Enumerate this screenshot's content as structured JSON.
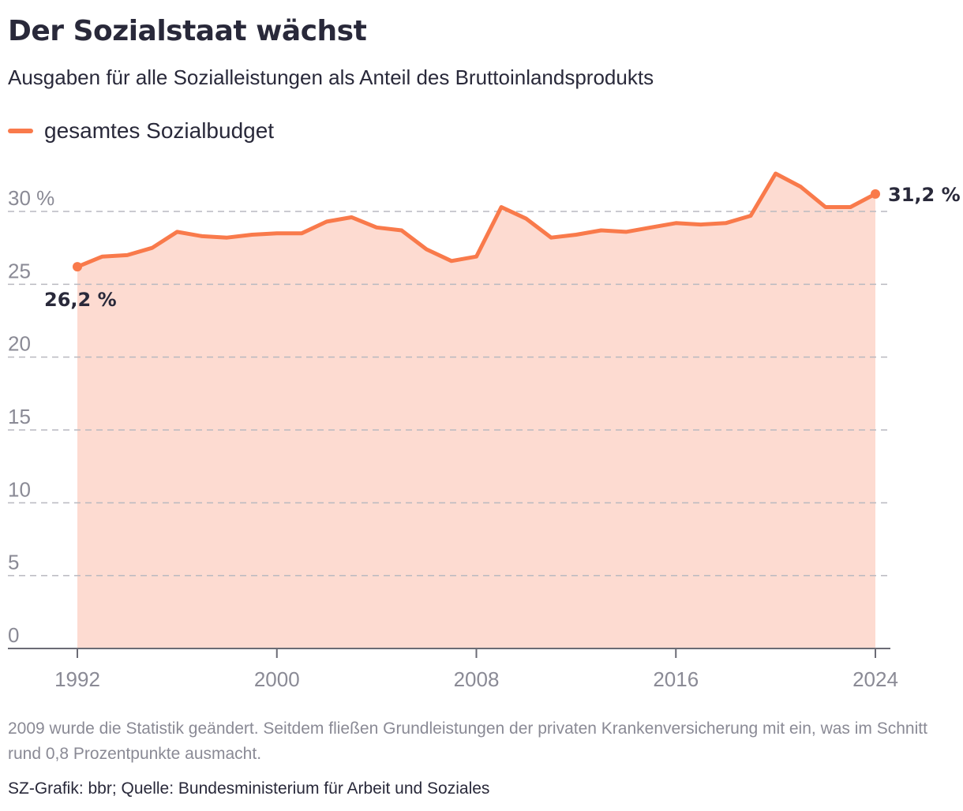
{
  "header": {
    "title": "Der Sozialstaat wächst",
    "subtitle": "Ausgaben für alle Sozialleistungen als Anteil des Bruttoinlandsprodukts"
  },
  "colors": {
    "line": "#f97a4b",
    "area": "#fddbd1",
    "grid": "#b9b9c0",
    "axis": "#8a8a95",
    "text": "#29293a"
  },
  "chart_data": {
    "type": "area",
    "title": "Der Sozialstaat wächst",
    "subtitle": "Ausgaben für alle Sozialleistungen als Anteil des Bruttoinlandsprodukts",
    "xlabel": "",
    "ylabel": "",
    "ylim": [
      0,
      30
    ],
    "y_ticks": [
      {
        "value": 0,
        "label": "0"
      },
      {
        "value": 5,
        "label": "5"
      },
      {
        "value": 10,
        "label": "10"
      },
      {
        "value": 15,
        "label": "15"
      },
      {
        "value": 20,
        "label": "20"
      },
      {
        "value": 25,
        "label": "25"
      },
      {
        "value": 30,
        "label": "30 %"
      }
    ],
    "x_ticks": [
      1992,
      2000,
      2008,
      2016,
      2024
    ],
    "grid": true,
    "legend_position": "top-left",
    "series": [
      {
        "name": "gesamtes Sozialbudget",
        "x": [
          1992,
          1993,
          1994,
          1995,
          1996,
          1997,
          1998,
          1999,
          2000,
          2001,
          2002,
          2003,
          2004,
          2005,
          2006,
          2007,
          2008,
          2009,
          2010,
          2011,
          2012,
          2013,
          2014,
          2015,
          2016,
          2017,
          2018,
          2019,
          2020,
          2021,
          2022,
          2023,
          2024
        ],
        "values": [
          26.2,
          26.9,
          27.0,
          27.5,
          28.6,
          28.3,
          28.2,
          28.4,
          28.5,
          28.5,
          29.3,
          29.6,
          28.9,
          28.7,
          27.4,
          26.6,
          26.9,
          30.3,
          29.5,
          28.2,
          28.4,
          28.7,
          28.6,
          28.9,
          29.2,
          29.1,
          29.2,
          29.7,
          32.6,
          31.7,
          30.3,
          30.3,
          31.2
        ]
      }
    ],
    "annotations": [
      {
        "x": 1992,
        "value": 26.2,
        "label": "26,2 %",
        "placement": "below"
      },
      {
        "x": 2024,
        "value": 31.2,
        "label": "31,2 %",
        "placement": "right"
      }
    ]
  },
  "footer": {
    "note": "2009 wurde die Statistik geändert. Seitdem fließen Grundleistungen der privaten Krankenversicherung mit ein, was im Schnitt rund 0,8 Prozentpunkte ausmacht.",
    "source": "SZ-Grafik: bbr; Quelle: Bundesministerium für Arbeit und Soziales"
  }
}
